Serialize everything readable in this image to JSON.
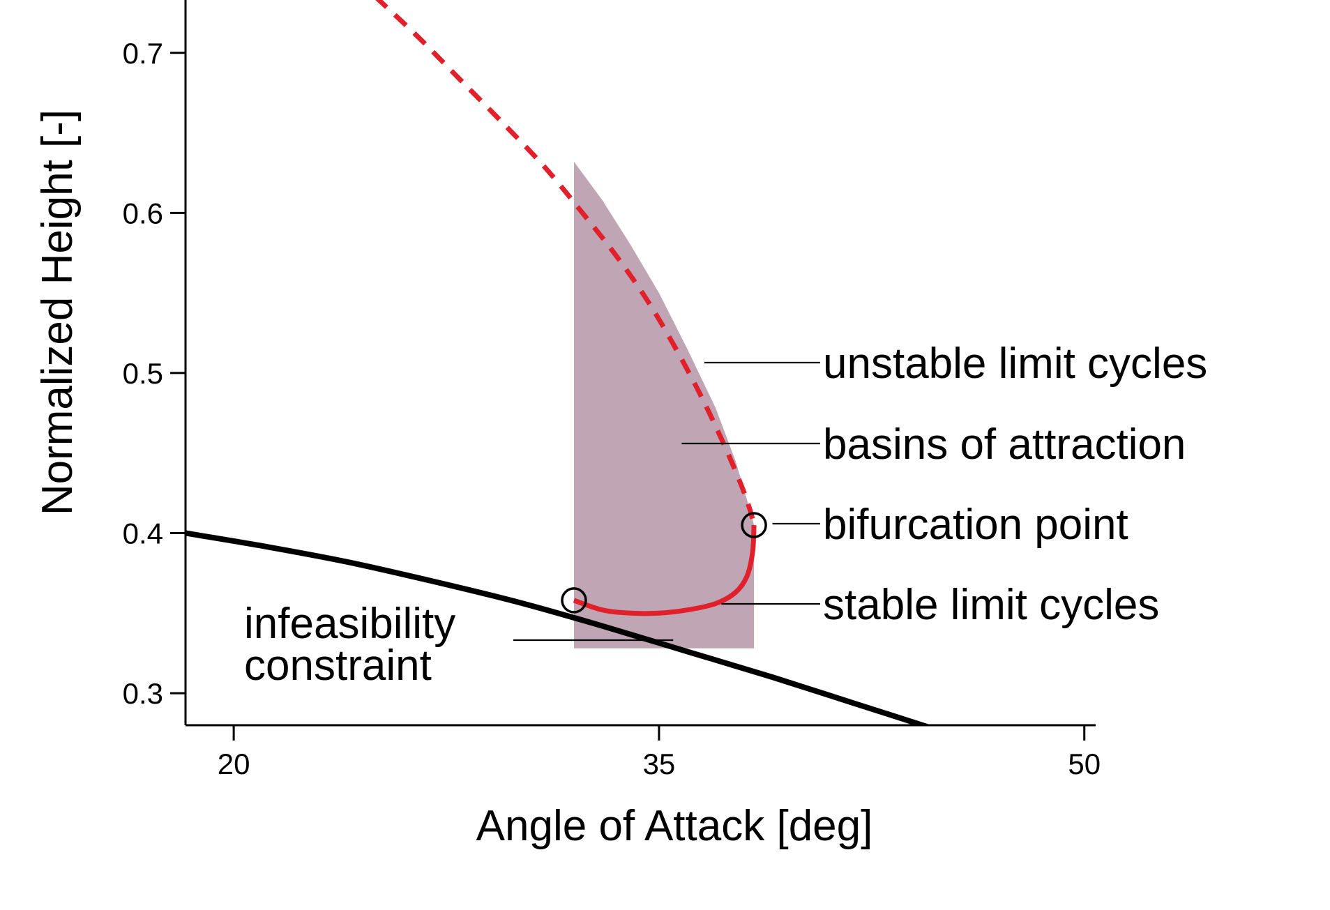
{
  "chart_data": {
    "type": "line",
    "xlabel": "Angle of Attack [deg]",
    "ylabel": "Normalized Height [-]",
    "xlim": [
      18.3,
      50.4
    ],
    "ylim": [
      0.28,
      0.733
    ],
    "xticks": [
      {
        "value": 20,
        "label": "20"
      },
      {
        "value": 35,
        "label": "35"
      },
      {
        "value": 50,
        "label": "50"
      }
    ],
    "yticks": [
      {
        "value": 0.3,
        "label": "0.3"
      },
      {
        "value": 0.4,
        "label": "0.4"
      },
      {
        "value": 0.5,
        "label": "0.5"
      },
      {
        "value": 0.6,
        "label": "0.6"
      },
      {
        "value": 0.7,
        "label": "0.7"
      }
    ],
    "grid": false,
    "legend": "none",
    "series": [
      {
        "role": "infeasibility",
        "style": "solid",
        "color": "#000000",
        "x": [
          18.3,
          21,
          24,
          27,
          30,
          33,
          36,
          39,
          42,
          45,
          48.1
        ],
        "y": [
          0.4,
          0.392,
          0.382,
          0.37,
          0.357,
          0.342,
          0.326,
          0.31,
          0.293,
          0.276,
          0.258
        ]
      },
      {
        "role": "unstable",
        "style": "dashed",
        "color": "#e0202a",
        "x": [
          25.0,
          26.5,
          28.0,
          29.5,
          31.0,
          32.3,
          33.5,
          34.6,
          35.6,
          36.5,
          37.3,
          37.9,
          38.2,
          38.35
        ],
        "y": [
          0.735,
          0.71,
          0.683,
          0.656,
          0.628,
          0.6,
          0.573,
          0.545,
          0.515,
          0.485,
          0.455,
          0.43,
          0.415,
          0.405
        ]
      },
      {
        "role": "stable",
        "style": "solid",
        "color": "#e0202a",
        "x": [
          32.0,
          33.0,
          34.0,
          35.0,
          36.0,
          37.0,
          37.7,
          38.1,
          38.3,
          38.35
        ],
        "y": [
          0.358,
          0.352,
          0.35,
          0.35,
          0.352,
          0.356,
          0.363,
          0.373,
          0.388,
          0.405
        ]
      }
    ],
    "basin": {
      "color": "#c0a6b4",
      "x_start": 32.0,
      "x_end": 38.35,
      "y_bottom": 0.328,
      "top": {
        "x": [
          32.0,
          33.0,
          34.0,
          35.0,
          36.0,
          37.0,
          37.7,
          38.2,
          38.35
        ],
        "y": [
          0.632,
          0.608,
          0.58,
          0.55,
          0.515,
          0.478,
          0.445,
          0.415,
          0.405
        ]
      }
    },
    "points": [
      {
        "x": 32.0,
        "y": 0.358,
        "role": "infeasibility-intersection"
      },
      {
        "x": 38.35,
        "y": 0.405,
        "role": "bifurcation"
      }
    ],
    "annotations": [
      {
        "text": "unstable limit cycles",
        "target_x": 36.6,
        "target_y": 0.49,
        "label_y": 0.49
      },
      {
        "text": "basins of attraction",
        "target_x": 35.8,
        "target_y": 0.44,
        "label_y": 0.44
      },
      {
        "text": "bifurcation point",
        "target_x": 39.0,
        "target_y": 0.405,
        "label_y": 0.405
      },
      {
        "text": "stable limit cycles",
        "target_x": 37.2,
        "target_y": 0.356,
        "label_y": 0.356
      },
      {
        "text": "infeasibility\nconstraint",
        "target_x": 35.5,
        "target_y": 0.336
      }
    ]
  }
}
